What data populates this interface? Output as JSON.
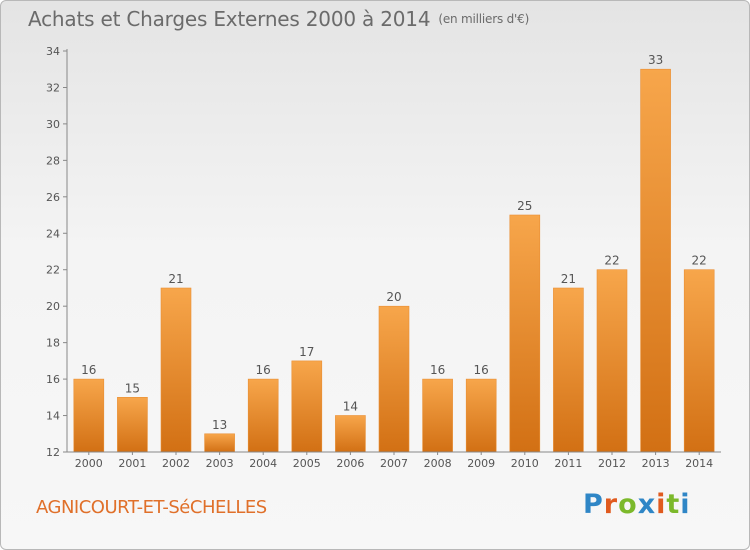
{
  "header": {
    "title": "Achats et Charges Externes 2000 à 2014",
    "unit": "(en milliers d'€)"
  },
  "footer": {
    "commune": "AGNICOURT-ET-SéCHELLES",
    "brand": "Proxiti"
  },
  "colors": {
    "bar_light": "#f7a64b",
    "bar_dark": "#d27014",
    "text": "#6b6b6b",
    "commune": "#e0702a"
  },
  "brand_letter_colors": [
    "#2f86c6",
    "#e05a1e",
    "#7cb92b",
    "#2f86c6",
    "#e05a1e",
    "#7cb92b",
    "#2f86c6"
  ],
  "chart_data": {
    "type": "bar",
    "title": "Achats et Charges Externes 2000 à 2014",
    "subtitle": "(en milliers d'€)",
    "categories": [
      "2000",
      "2001",
      "2002",
      "2003",
      "2004",
      "2005",
      "2006",
      "2007",
      "2008",
      "2009",
      "2010",
      "2011",
      "2012",
      "2013",
      "2014"
    ],
    "values": [
      16,
      15,
      21,
      13,
      16,
      17,
      14,
      20,
      16,
      16,
      25,
      21,
      22,
      33,
      22
    ],
    "ylim": [
      12,
      34
    ],
    "yticks": [
      12,
      14,
      16,
      18,
      20,
      22,
      24,
      26,
      28,
      30,
      32,
      34
    ],
    "grid": false,
    "legend": "none"
  }
}
